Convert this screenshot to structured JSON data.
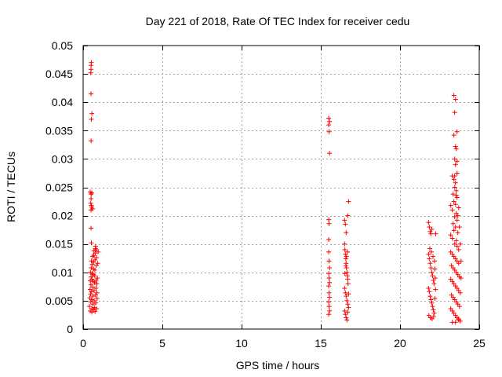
{
  "chart_data": {
    "type": "scatter",
    "title": "Day 221 of 2018, Rate Of TEC Index for receiver cedu",
    "xlabel": "GPS time / hours",
    "ylabel": "ROTI / TECUs",
    "xlim": [
      0,
      25
    ],
    "ylim": [
      0,
      0.05
    ],
    "xticks": [
      0,
      5,
      10,
      15,
      20,
      25
    ],
    "xtick_labels": [
      "0",
      "5",
      "10",
      "15",
      "20",
      "25"
    ],
    "yticks": [
      0,
      0.005,
      0.01,
      0.015,
      0.02,
      0.025,
      0.03,
      0.035,
      0.04,
      0.045,
      0.05
    ],
    "ytick_labels": [
      "0",
      "0.005",
      "0.01",
      "0.015",
      "0.02",
      "0.025",
      "0.03",
      "0.035",
      "0.04",
      "0.045",
      "0.05"
    ],
    "grid": true,
    "marker": "plus",
    "series_color": "#ff0000",
    "series": [
      {
        "name": "ROTI",
        "points": [
          [
            0.5,
            0.0465
          ],
          [
            0.52,
            0.047
          ],
          [
            0.5,
            0.0458
          ],
          [
            0.48,
            0.0452
          ],
          [
            0.5,
            0.0415
          ],
          [
            0.55,
            0.038
          ],
          [
            0.52,
            0.037
          ],
          [
            0.5,
            0.0332
          ],
          [
            0.45,
            0.0242
          ],
          [
            0.5,
            0.0238
          ],
          [
            0.55,
            0.024
          ],
          [
            0.5,
            0.023
          ],
          [
            0.48,
            0.0222
          ],
          [
            0.52,
            0.0218
          ],
          [
            0.55,
            0.0215
          ],
          [
            0.5,
            0.021
          ],
          [
            0.6,
            0.0212
          ],
          [
            0.5,
            0.0178
          ],
          [
            0.52,
            0.0152
          ],
          [
            0.4,
            0.004
          ],
          [
            0.42,
            0.0055
          ],
          [
            0.44,
            0.007
          ],
          [
            0.45,
            0.0085
          ],
          [
            0.46,
            0.01
          ],
          [
            0.47,
            0.0062
          ],
          [
            0.48,
            0.0048
          ],
          [
            0.49,
            0.0078
          ],
          [
            0.5,
            0.0092
          ],
          [
            0.51,
            0.0108
          ],
          [
            0.52,
            0.012
          ],
          [
            0.53,
            0.0066
          ],
          [
            0.54,
            0.0052
          ],
          [
            0.55,
            0.0036
          ],
          [
            0.56,
            0.0088
          ],
          [
            0.57,
            0.0098
          ],
          [
            0.58,
            0.0114
          ],
          [
            0.59,
            0.0128
          ],
          [
            0.6,
            0.0074
          ],
          [
            0.61,
            0.0058
          ],
          [
            0.62,
            0.0044
          ],
          [
            0.63,
            0.0084
          ],
          [
            0.64,
            0.0096
          ],
          [
            0.65,
            0.0106
          ],
          [
            0.66,
            0.0118
          ],
          [
            0.67,
            0.013
          ],
          [
            0.68,
            0.0138
          ],
          [
            0.69,
            0.0068
          ],
          [
            0.7,
            0.005
          ],
          [
            0.71,
            0.0038
          ],
          [
            0.72,
            0.0082
          ],
          [
            0.73,
            0.0094
          ],
          [
            0.74,
            0.0104
          ],
          [
            0.75,
            0.0122
          ],
          [
            0.76,
            0.0134
          ],
          [
            0.77,
            0.0142
          ],
          [
            0.78,
            0.0146
          ],
          [
            0.79,
            0.006
          ],
          [
            0.8,
            0.0046
          ],
          [
            0.81,
            0.0072
          ],
          [
            0.82,
            0.0086
          ],
          [
            0.83,
            0.0112
          ],
          [
            0.84,
            0.0126
          ],
          [
            0.85,
            0.014
          ],
          [
            0.86,
            0.008
          ],
          [
            0.87,
            0.0064
          ],
          [
            0.88,
            0.0054
          ],
          [
            0.9,
            0.009
          ],
          [
            0.92,
            0.0116
          ],
          [
            0.95,
            0.0136
          ],
          [
            0.45,
            0.0032
          ],
          [
            0.55,
            0.003
          ],
          [
            0.65,
            0.0034
          ],
          [
            0.75,
            0.0031
          ],
          [
            0.85,
            0.0036
          ],
          [
            15.5,
            0.0372
          ],
          [
            15.55,
            0.0366
          ],
          [
            15.5,
            0.036
          ],
          [
            15.52,
            0.0348
          ],
          [
            15.55,
            0.031
          ],
          [
            15.5,
            0.0193
          ],
          [
            15.52,
            0.0186
          ],
          [
            15.5,
            0.0158
          ],
          [
            15.5,
            0.0136
          ],
          [
            15.52,
            0.012
          ],
          [
            15.55,
            0.0108
          ],
          [
            15.5,
            0.0098
          ],
          [
            15.52,
            0.009
          ],
          [
            15.55,
            0.0082
          ],
          [
            15.5,
            0.0076
          ],
          [
            15.52,
            0.0064
          ],
          [
            15.55,
            0.0056
          ],
          [
            15.5,
            0.0048
          ],
          [
            15.52,
            0.004
          ],
          [
            15.55,
            0.0032
          ],
          [
            15.5,
            0.0026
          ],
          [
            16.5,
            0.0192
          ],
          [
            16.55,
            0.0185
          ],
          [
            16.6,
            0.017
          ],
          [
            16.75,
            0.0225
          ],
          [
            16.7,
            0.02
          ],
          [
            16.5,
            0.015
          ],
          [
            16.52,
            0.014
          ],
          [
            16.55,
            0.0132
          ],
          [
            16.58,
            0.0124
          ],
          [
            16.6,
            0.0116
          ],
          [
            16.62,
            0.0108
          ],
          [
            16.65,
            0.01
          ],
          [
            16.68,
            0.0094
          ],
          [
            16.7,
            0.0088
          ],
          [
            16.72,
            0.008
          ],
          [
            16.5,
            0.0072
          ],
          [
            16.55,
            0.0064
          ],
          [
            16.6,
            0.0058
          ],
          [
            16.65,
            0.005
          ],
          [
            16.7,
            0.0044
          ],
          [
            16.75,
            0.0038
          ],
          [
            16.5,
            0.0032
          ],
          [
            16.55,
            0.0026
          ],
          [
            16.6,
            0.002
          ],
          [
            16.65,
            0.0016
          ],
          [
            16.7,
            0.003
          ],
          [
            16.75,
            0.0062
          ],
          [
            16.52,
            0.0098
          ],
          [
            16.58,
            0.0112
          ],
          [
            16.62,
            0.0128
          ],
          [
            16.68,
            0.0136
          ],
          [
            21.8,
            0.0188
          ],
          [
            21.85,
            0.018
          ],
          [
            21.9,
            0.0172
          ],
          [
            21.95,
            0.0168
          ],
          [
            22.0,
            0.0176
          ],
          [
            22.25,
            0.0168
          ],
          [
            21.8,
            0.0132
          ],
          [
            21.85,
            0.0124
          ],
          [
            21.9,
            0.0116
          ],
          [
            21.95,
            0.0108
          ],
          [
            22.0,
            0.01
          ],
          [
            22.05,
            0.0094
          ],
          [
            22.1,
            0.0086
          ],
          [
            22.15,
            0.008
          ],
          [
            21.8,
            0.0072
          ],
          [
            21.85,
            0.0066
          ],
          [
            21.9,
            0.0058
          ],
          [
            21.95,
            0.0052
          ],
          [
            22.0,
            0.0046
          ],
          [
            22.05,
            0.004
          ],
          [
            22.1,
            0.0034
          ],
          [
            22.15,
            0.0028
          ],
          [
            21.82,
            0.0024
          ],
          [
            21.92,
            0.002
          ],
          [
            22.02,
            0.0018
          ],
          [
            22.12,
            0.0022
          ],
          [
            21.88,
            0.0142
          ],
          [
            21.98,
            0.0136
          ],
          [
            22.08,
            0.0128
          ],
          [
            22.18,
            0.012
          ],
          [
            22.2,
            0.0106
          ],
          [
            22.22,
            0.009
          ],
          [
            22.24,
            0.007
          ],
          [
            22.2,
            0.0054
          ],
          [
            23.4,
            0.0412
          ],
          [
            23.5,
            0.0405
          ],
          [
            23.45,
            0.0382
          ],
          [
            23.6,
            0.0348
          ],
          [
            23.4,
            0.0342
          ],
          [
            23.5,
            0.0322
          ],
          [
            23.55,
            0.0318
          ],
          [
            23.45,
            0.03
          ],
          [
            23.5,
            0.029
          ],
          [
            23.6,
            0.0275
          ],
          [
            23.3,
            0.027
          ],
          [
            23.4,
            0.0264
          ],
          [
            23.5,
            0.0258
          ],
          [
            23.45,
            0.025
          ],
          [
            23.55,
            0.0244
          ],
          [
            23.35,
            0.0238
          ],
          [
            23.6,
            0.0232
          ],
          [
            23.4,
            0.0225
          ],
          [
            23.5,
            0.022
          ],
          [
            23.2,
            0.0218
          ],
          [
            23.7,
            0.0214
          ],
          [
            23.3,
            0.021
          ],
          [
            23.55,
            0.0204
          ],
          [
            23.45,
            0.0198
          ],
          [
            23.6,
            0.0192
          ],
          [
            23.35,
            0.0186
          ],
          [
            23.5,
            0.018
          ],
          [
            23.4,
            0.0174
          ],
          [
            23.65,
            0.017
          ],
          [
            23.2,
            0.0166
          ],
          [
            23.3,
            0.016
          ],
          [
            23.55,
            0.0156
          ],
          [
            23.45,
            0.015
          ],
          [
            23.6,
            0.0146
          ],
          [
            23.7,
            0.014
          ],
          [
            23.2,
            0.0136
          ],
          [
            23.3,
            0.0132
          ],
          [
            23.4,
            0.0128
          ],
          [
            23.5,
            0.0124
          ],
          [
            23.6,
            0.012
          ],
          [
            23.7,
            0.0116
          ],
          [
            23.25,
            0.0112
          ],
          [
            23.35,
            0.0108
          ],
          [
            23.45,
            0.0104
          ],
          [
            23.55,
            0.01
          ],
          [
            23.65,
            0.0096
          ],
          [
            23.75,
            0.0092
          ],
          [
            23.2,
            0.0088
          ],
          [
            23.3,
            0.0084
          ],
          [
            23.4,
            0.008
          ],
          [
            23.5,
            0.0076
          ],
          [
            23.6,
            0.0072
          ],
          [
            23.7,
            0.0068
          ],
          [
            23.8,
            0.0064
          ],
          [
            23.25,
            0.006
          ],
          [
            23.35,
            0.0056
          ],
          [
            23.45,
            0.0052
          ],
          [
            23.55,
            0.0048
          ],
          [
            23.65,
            0.0044
          ],
          [
            23.75,
            0.004
          ],
          [
            23.2,
            0.0036
          ],
          [
            23.3,
            0.0032
          ],
          [
            23.4,
            0.0028
          ],
          [
            23.5,
            0.0024
          ],
          [
            23.6,
            0.002
          ],
          [
            23.7,
            0.0016
          ],
          [
            23.8,
            0.0014
          ],
          [
            23.3,
            0.0012
          ],
          [
            23.5,
            0.0012
          ],
          [
            23.7,
            0.0018
          ],
          [
            23.85,
            0.009
          ],
          [
            23.85,
            0.012
          ],
          [
            23.8,
            0.015
          ],
          [
            23.75,
            0.018
          ],
          [
            23.65,
            0.02
          ],
          [
            23.55,
            0.0236
          ],
          [
            23.45,
            0.027
          ],
          [
            23.6,
            0.0296
          ]
        ]
      }
    ]
  }
}
